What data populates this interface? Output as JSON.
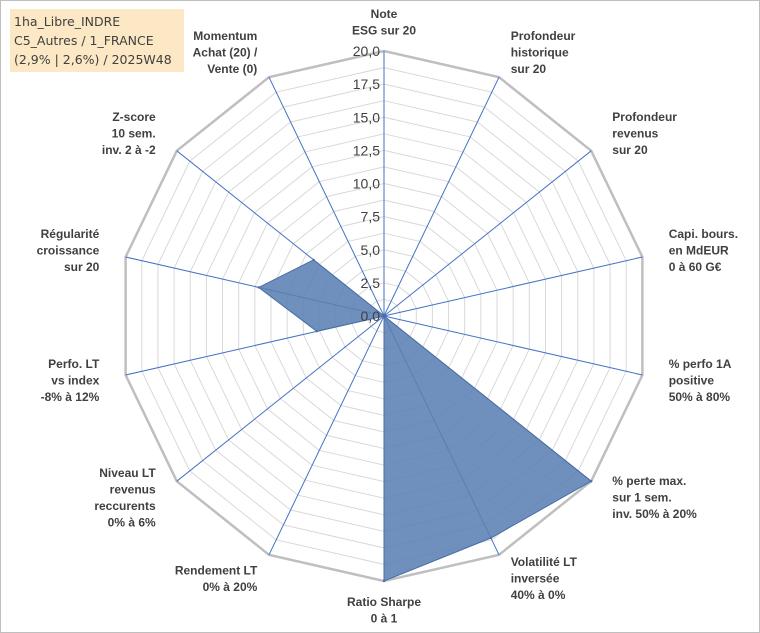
{
  "info": {
    "line1": "1ha_Libre_INDRE",
    "line2": "C5_Autres / 1_FRANCE",
    "line3": "(2,9% | 2,6%) / 2025W48"
  },
  "colors": {
    "series_fill": "#5b7fb4",
    "series_stroke": "#4a6fa5",
    "spoke": "#4472c4",
    "grid": "#d9d9d9",
    "outer_ring": "#bfbfbf"
  },
  "chart_data": {
    "type": "radar",
    "title": "",
    "rlim": [
      0,
      20
    ],
    "tick_labels": [
      "0,0",
      "2,5",
      "5,0",
      "7,5",
      "10,0",
      "12,5",
      "15,0",
      "17,5",
      "20,0"
    ],
    "grid": true,
    "legend": "none",
    "categories": [
      [
        "Note",
        "ESG sur 20"
      ],
      [
        "Profondeur",
        "historique",
        "sur 20"
      ],
      [
        "Profondeur",
        "revenus",
        "sur 20"
      ],
      [
        "Capi. bours.",
        "en MdEUR",
        "0 à 60 G€"
      ],
      [
        "% perfo 1A",
        "positive",
        "50% à 80%"
      ],
      [
        "% perte max.",
        "sur 1 sem.",
        "inv. 50% à 20%"
      ],
      [
        "Volatilité LT",
        "inversée",
        "40% à 0%"
      ],
      [
        "Ratio Sharpe",
        "0 à 1"
      ],
      [
        "Rendement LT",
        "0% à 20%"
      ],
      [
        "Niveau LT",
        "revenus",
        "reccurents",
        "0% à 6%"
      ],
      [
        "Perfo. LT",
        "vs index",
        "-8% à 12%"
      ],
      [
        "Régularité",
        "croissance",
        "sur 20"
      ],
      [
        "Z-score",
        "10 sem.",
        "inv. 2 à -2"
      ],
      [
        "Momentum",
        "Achat (20) /",
        "Vente (0)"
      ]
    ],
    "series": [
      {
        "values": [
          0,
          0,
          0,
          0,
          0,
          20,
          18.6,
          20,
          0,
          0,
          5.2,
          9.7,
          6.8,
          0
        ]
      }
    ]
  }
}
